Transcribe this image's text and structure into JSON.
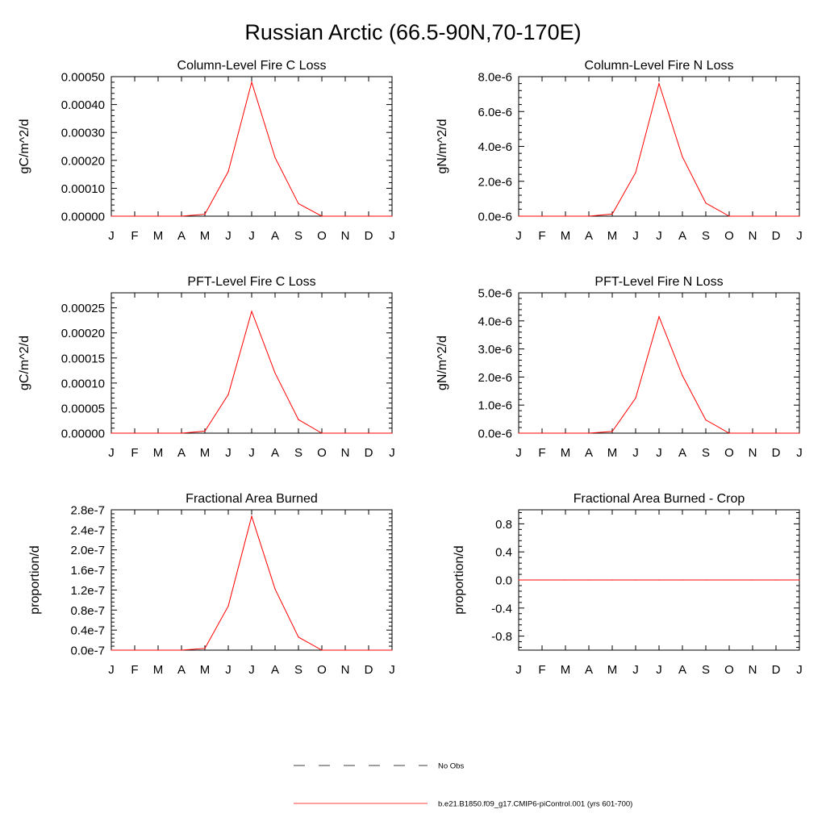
{
  "figure": {
    "title": "Russian Arctic (66.5-90N,70-170E)"
  },
  "legend": {
    "entries": [
      {
        "label": "No Obs",
        "style": "dashed",
        "color": "#000000"
      },
      {
        "label": "b.e21.B1850.f09_g17.CMIP6-piControl.001 (yrs 601-700)",
        "style": "solid",
        "color": "#ff0000"
      }
    ]
  },
  "chart_data": [
    {
      "type": "line",
      "title": "Column-Level Fire C Loss",
      "ylabel": "gC/m^2/d",
      "xlabel": "",
      "categories": [
        "J",
        "F",
        "M",
        "A",
        "M",
        "J",
        "J",
        "A",
        "S",
        "O",
        "N",
        "D",
        "J"
      ],
      "ylim": [
        0,
        0.0005
      ],
      "ytick_values": [
        0,
        0.0001,
        0.0002,
        0.0003,
        0.0004,
        0.0005
      ],
      "ytick_labels": [
        "0.00000",
        "0.00010",
        "0.00020",
        "0.00030",
        "0.00040",
        "0.00050"
      ],
      "series": [
        {
          "name": "b.e21.B1850.f09_g17.CMIP6-piControl.001 (yrs 601-700)",
          "color": "#ff0000",
          "values": [
            0,
            0,
            0,
            0,
            7e-06,
            0.00016,
            0.00048,
            0.00021,
            4.5e-05,
            0,
            0,
            0,
            0
          ]
        }
      ]
    },
    {
      "type": "line",
      "title": "Column-Level Fire N Loss",
      "ylabel": "gN/m^2/d",
      "xlabel": "",
      "categories": [
        "J",
        "F",
        "M",
        "A",
        "M",
        "J",
        "J",
        "A",
        "S",
        "O",
        "N",
        "D",
        "J"
      ],
      "ylim": [
        0,
        8e-06
      ],
      "ytick_values": [
        0,
        2e-06,
        4e-06,
        6e-06,
        8e-06
      ],
      "ytick_labels": [
        "0.0e-6",
        "2.0e-6",
        "4.0e-6",
        "6.0e-6",
        "8.0e-6"
      ],
      "series": [
        {
          "name": "b.e21.B1850.f09_g17.CMIP6-piControl.001 (yrs 601-700)",
          "color": "#ff0000",
          "values": [
            0,
            0,
            0,
            0,
            1.2e-07,
            2.5e-06,
            7.6e-06,
            3.4e-06,
            7.5e-07,
            0,
            0,
            0,
            0
          ]
        }
      ]
    },
    {
      "type": "line",
      "title": "PFT-Level Fire C Loss",
      "ylabel": "gC/m^2/d",
      "xlabel": "",
      "categories": [
        "J",
        "F",
        "M",
        "A",
        "M",
        "J",
        "J",
        "A",
        "S",
        "O",
        "N",
        "D",
        "J"
      ],
      "ylim": [
        0,
        0.00028
      ],
      "ytick_values": [
        0,
        5e-05,
        0.0001,
        0.00015,
        0.0002,
        0.00025
      ],
      "ytick_labels": [
        "0.00000",
        "0.00005",
        "0.00010",
        "0.00015",
        "0.00020",
        "0.00025"
      ],
      "series": [
        {
          "name": "b.e21.B1850.f09_g17.CMIP6-piControl.001 (yrs 601-700)",
          "color": "#ff0000",
          "values": [
            0,
            0,
            0,
            0,
            4e-06,
            7.7e-05,
            0.000243,
            0.00012,
            2.7e-05,
            0,
            0,
            0,
            0
          ]
        }
      ]
    },
    {
      "type": "line",
      "title": "PFT-Level Fire N Loss",
      "ylabel": "gN/m^2/d",
      "xlabel": "",
      "categories": [
        "J",
        "F",
        "M",
        "A",
        "M",
        "J",
        "J",
        "A",
        "S",
        "O",
        "N",
        "D",
        "J"
      ],
      "ylim": [
        0,
        5e-06
      ],
      "ytick_values": [
        0,
        1e-06,
        2e-06,
        3e-06,
        4e-06,
        5e-06
      ],
      "ytick_labels": [
        "0.0e-6",
        "1.0e-6",
        "2.0e-6",
        "3.0e-6",
        "4.0e-6",
        "5.0e-6"
      ],
      "series": [
        {
          "name": "b.e21.B1850.f09_g17.CMIP6-piControl.001 (yrs 601-700)",
          "color": "#ff0000",
          "values": [
            0,
            0,
            0,
            0,
            6e-08,
            1.25e-06,
            4.15e-06,
            2.05e-06,
            4.7e-07,
            0,
            0,
            0,
            0
          ]
        }
      ]
    },
    {
      "type": "line",
      "title": "Fractional Area Burned",
      "ylabel": "proportion/d",
      "xlabel": "",
      "categories": [
        "J",
        "F",
        "M",
        "A",
        "M",
        "J",
        "J",
        "A",
        "S",
        "O",
        "N",
        "D",
        "J"
      ],
      "ylim": [
        0,
        2.8e-07
      ],
      "ytick_values": [
        0,
        4e-08,
        8e-08,
        1.2e-07,
        1.6e-07,
        2e-07,
        2.4e-07,
        2.8e-07
      ],
      "ytick_labels": [
        "0.0e-7",
        "0.4e-7",
        "0.8e-7",
        "1.2e-7",
        "1.6e-7",
        "2.0e-7",
        "2.4e-7",
        "2.8e-7"
      ],
      "series": [
        {
          "name": "b.e21.B1850.f09_g17.CMIP6-piControl.001 (yrs 601-700)",
          "color": "#ff0000",
          "values": [
            0,
            0,
            0,
            0,
            3.5e-09,
            8.8e-08,
            2.67e-07,
            1.22e-07,
            2.6e-08,
            0,
            0,
            0,
            0
          ]
        }
      ]
    },
    {
      "type": "line",
      "title": "Fractional Area Burned - Crop",
      "ylabel": "proportion/d",
      "xlabel": "",
      "categories": [
        "J",
        "F",
        "M",
        "A",
        "M",
        "J",
        "J",
        "A",
        "S",
        "O",
        "N",
        "D",
        "J"
      ],
      "ylim": [
        -1,
        1
      ],
      "ytick_values": [
        -0.8,
        -0.4,
        0,
        0.4,
        0.8
      ],
      "ytick_labels": [
        "-0.8",
        "-0.4",
        "0.0",
        "0.4",
        "0.8"
      ],
      "series": [
        {
          "name": "b.e21.B1850.f09_g17.CMIP6-piControl.001 (yrs 601-700)",
          "color": "#ff0000",
          "values": [
            0,
            0,
            0,
            0,
            0,
            0,
            0,
            0,
            0,
            0,
            0,
            0,
            0
          ]
        }
      ]
    }
  ]
}
